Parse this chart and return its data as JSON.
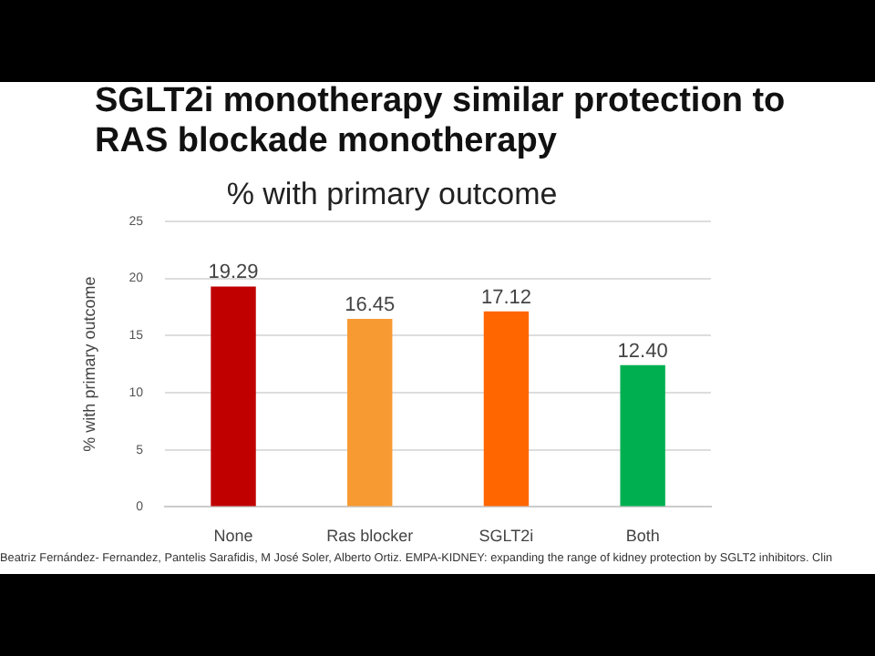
{
  "chart_data": {
    "type": "bar",
    "title": "% with primary outcome",
    "subtitle": "SGLT2i monotherapy similar protection to RAS blockade monotherapy",
    "ylabel": "% with primary outcome",
    "categories": [
      "None",
      "Ras blocker",
      "SGLT2i",
      "Both"
    ],
    "values": [
      19.29,
      16.45,
      17.12,
      12.4
    ],
    "colors": [
      "#c00000",
      "#f79a32",
      "#ff6600",
      "#00b050"
    ],
    "ylim": [
      0,
      25
    ],
    "yticks": [
      0,
      5,
      10,
      15,
      20,
      25
    ],
    "value_labels": [
      "19.29",
      "16.45",
      "17.12",
      "12.40"
    ],
    "grid": "y",
    "legend": false,
    "annotations": [
      "Beatriz Fernández- Fernandez, Pantelis Sarafidis, M José Soler, Alberto Ortiz. EMPA-KIDNEY: expanding the range of kidney protection by SGLT2 inhibitors. Clin"
    ]
  }
}
